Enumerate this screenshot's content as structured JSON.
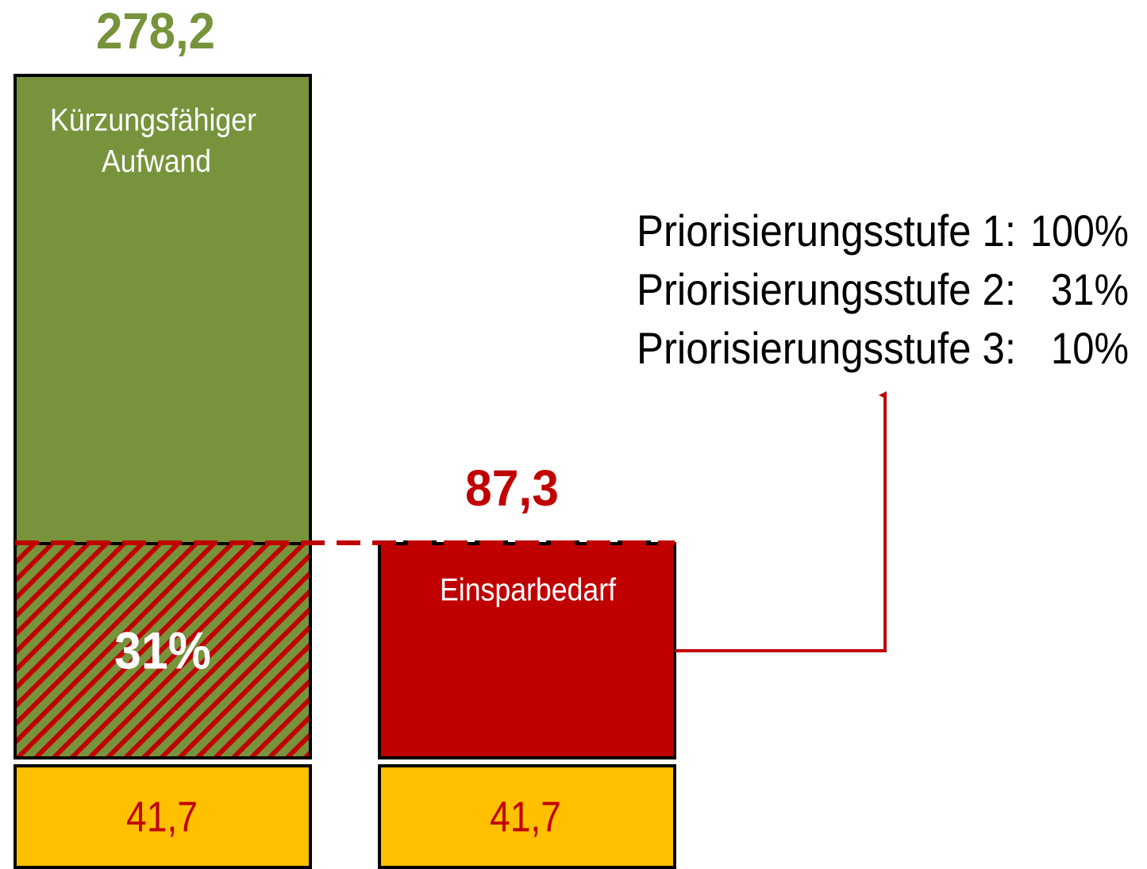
{
  "left_bar": {
    "total": "278,2",
    "label": [
      "Kürzungsfähiger",
      "Aufwand"
    ],
    "share": "31%",
    "base": "41,7"
  },
  "right_bar": {
    "total": "87,3",
    "label": "Einsparbedarf",
    "base": "41,7"
  },
  "priorities": [
    {
      "label": "Priorisierungsstufe 1:",
      "value": "100%"
    },
    {
      "label": "Priorisierungsstufe 2:",
      "value": "31%"
    },
    {
      "label": "Priorisierungsstufe 3:",
      "value": "10%"
    }
  ]
}
